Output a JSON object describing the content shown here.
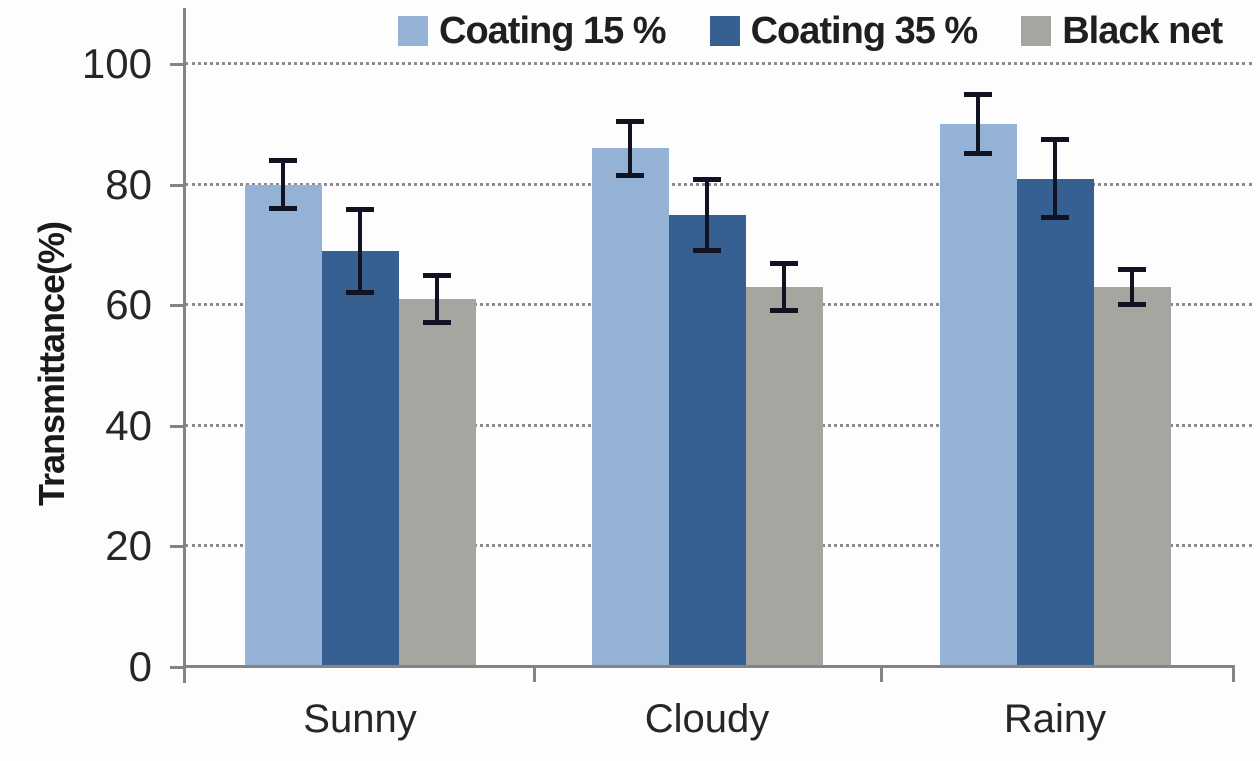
{
  "chart_data": {
    "type": "bar",
    "title": "",
    "xlabel": "",
    "ylabel": "Transmittance(%)",
    "ylim": [
      0,
      100
    ],
    "yticks": [
      0,
      20,
      40,
      60,
      80,
      100
    ],
    "grid": "horizontal-dotted",
    "legend_position": "top",
    "categories": [
      "Sunny",
      "Cloudy",
      "Rainy"
    ],
    "series": [
      {
        "name": "Coating 15 %",
        "color": "#94B2D6",
        "values": [
          80,
          86,
          90
        ],
        "errors": [
          4,
          4.5,
          5
        ]
      },
      {
        "name": "Coating 35 %",
        "color": "#376092",
        "values": [
          69,
          75,
          81
        ],
        "errors": [
          7,
          6,
          6.5
        ]
      },
      {
        "name": "Black net",
        "color": "#A6A6A1",
        "values": [
          61,
          63,
          63
        ],
        "errors": [
          4,
          4,
          3
        ]
      }
    ],
    "error_bar_color": "#111322",
    "axis_color": "#848484",
    "gridline_color": "#8c8c8c"
  }
}
